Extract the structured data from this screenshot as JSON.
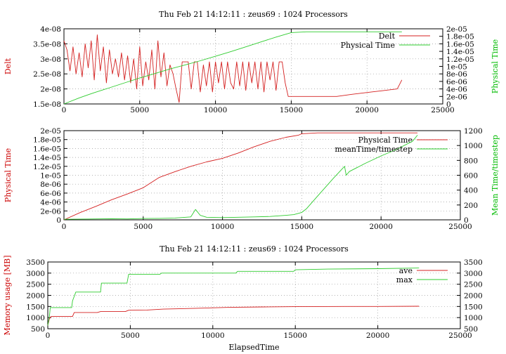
{
  "colors": {
    "red": "#d42020",
    "green": "#2ecc2e",
    "grid": "#9a9a9a",
    "axis": "#000000"
  },
  "chart_data": [
    {
      "type": "line",
      "title": "Thu Feb 21 14:12:11 : zeus69 : 1024 Processors",
      "xlabel": "",
      "ylabel": "Delt",
      "y2label": "Physical Time",
      "grid": true,
      "legend": "top-right",
      "xlim": [
        0,
        25000
      ],
      "ylim": [
        1.5e-08,
        4e-08
      ],
      "y2lim": [
        0,
        2e-05
      ],
      "xticks": [
        "0",
        "5000",
        "10000",
        "15000",
        "20000",
        "25000"
      ],
      "yticks": [
        "1.5e-08",
        "2e-08",
        "2.5e-08",
        "3e-08",
        "3.5e-08",
        "4e-08"
      ],
      "y2ticks": [
        "0",
        "2e-06",
        "4e-06",
        "6e-06",
        "8e-06",
        "1e-05",
        "1.2e-05",
        "1.4e-05",
        "1.6e-05",
        "1.8e-05",
        "2e-05"
      ],
      "series": [
        {
          "name": "Delt",
          "color": "red",
          "axis": "y",
          "x": [
            0,
            200,
            400,
            600,
            800,
            1000,
            1200,
            1400,
            1600,
            1800,
            2000,
            2200,
            2400,
            2600,
            2800,
            3000,
            3200,
            3400,
            3600,
            3800,
            4000,
            4200,
            4400,
            4600,
            4800,
            5000,
            5200,
            5400,
            5600,
            5800,
            6000,
            6200,
            6400,
            6600,
            6800,
            7000,
            7200,
            7400,
            7600,
            7800,
            8000,
            8200,
            8400,
            8600,
            8800,
            9000,
            9200,
            9400,
            9600,
            9800,
            10000,
            10200,
            10400,
            10600,
            10800,
            11000,
            11200,
            11400,
            11600,
            11800,
            12000,
            12200,
            12400,
            12600,
            12800,
            13000,
            13200,
            13400,
            13600,
            13800,
            14000,
            14200,
            14400,
            14600,
            14800,
            15000,
            16000,
            17000,
            18000,
            19000,
            20000,
            21000,
            22000,
            22300
          ],
          "y": [
            3.6e-08,
            3.3e-08,
            2.6e-08,
            3.4e-08,
            2.5e-08,
            3.2e-08,
            2.4e-08,
            3.5e-08,
            2.7e-08,
            3.6e-08,
            2.3e-08,
            3.8e-08,
            2.6e-08,
            3.4e-08,
            2.2e-08,
            3.3e-08,
            2.5e-08,
            3e-08,
            2.4e-08,
            3.2e-08,
            2.3e-08,
            3.1e-08,
            2.2e-08,
            3e-08,
            2e-08,
            3.4e-08,
            2.1e-08,
            2.9e-08,
            2.3e-08,
            3.3e-08,
            2e-08,
            3.6e-08,
            2.4e-08,
            3.2e-08,
            2.1e-08,
            2.8e-08,
            2.5e-08,
            2e-08,
            1.55e-08,
            2.9e-08,
            2.9e-08,
            2.9e-08,
            2e-08,
            2.9e-08,
            2.9e-08,
            1.9e-08,
            2.8e-08,
            2.1e-08,
            2.9e-08,
            1.9e-08,
            2.9e-08,
            2.2e-08,
            2.9e-08,
            2e-08,
            2.9e-08,
            2.2e-08,
            2e-08,
            2.9e-08,
            2.1e-08,
            2.9e-08,
            1.95e-08,
            2.9e-08,
            2.2e-08,
            2.9e-08,
            2e-08,
            2.9e-08,
            1.9e-08,
            2.9e-08,
            2.3e-08,
            2.9e-08,
            1.95e-08,
            2.9e-08,
            2.9e-08,
            2.2e-08,
            1.75e-08,
            1.75e-08,
            1.75e-08,
            1.75e-08,
            1.75e-08,
            1.82e-08,
            1.88e-08,
            1.94e-08,
            2e-08,
            2.3e-08
          ]
        },
        {
          "name": "Physical Time",
          "color": "green",
          "axis": "y2",
          "x": [
            0,
            1000,
            2000,
            3000,
            4000,
            5000,
            6000,
            7000,
            8000,
            9000,
            10000,
            11000,
            12000,
            13000,
            14000,
            15000,
            16000,
            17000,
            18000,
            19000,
            20000,
            21000,
            22000,
            22300
          ],
          "y": [
            0,
            1.6e-06,
            3e-06,
            4.3e-06,
            5.6e-06,
            6.9e-06,
            8.1e-06,
            9.3e-06,
            1.04e-05,
            1.15e-05,
            1.27e-05,
            1.39e-05,
            1.52e-05,
            1.65e-05,
            1.78e-05,
            1.9e-05,
            1.92e-05,
            1.92e-05,
            1.92e-05,
            1.92e-05,
            1.92e-05,
            1.92e-05,
            1.92e-05,
            1.92e-05
          ]
        }
      ]
    },
    {
      "type": "line",
      "title": "",
      "xlabel": "",
      "ylabel": "Physical Time",
      "y2label": "Mean Time/timestep",
      "grid": true,
      "legend": "top-right",
      "xlim": [
        0,
        25000
      ],
      "ylim": [
        0,
        2e-05
      ],
      "y2lim": [
        0,
        1200
      ],
      "xticks": [
        "0",
        "5000",
        "10000",
        "15000",
        "20000",
        "25000"
      ],
      "yticks": [
        "0",
        "2e-06",
        "4e-06",
        "6e-06",
        "8e-06",
        "1e-05",
        "1.2e-05",
        "1.4e-05",
        "1.6e-05",
        "1.8e-05",
        "2e-05"
      ],
      "y2ticks": [
        "0",
        "200",
        "400",
        "600",
        "800",
        "1000",
        "1200"
      ],
      "series": [
        {
          "name": "Physical Time",
          "color": "red",
          "axis": "y",
          "x": [
            0,
            1000,
            2000,
            3000,
            4000,
            5000,
            6000,
            7000,
            8000,
            9000,
            10000,
            11000,
            12000,
            13000,
            14000,
            14800,
            15000,
            16000,
            18000,
            20000,
            22000,
            22300
          ],
          "y": [
            0,
            1.6e-06,
            3e-06,
            4.5e-06,
            5.8e-06,
            7.2e-06,
            9.5e-06,
            1.08e-05,
            1.2e-05,
            1.3e-05,
            1.38e-05,
            1.5e-05,
            1.64e-05,
            1.76e-05,
            1.85e-05,
            1.9e-05,
            1.93e-05,
            1.95e-05,
            1.95e-05,
            1.95e-05,
            1.95e-05,
            1.95e-05
          ]
        },
        {
          "name": "meanTime/timestep",
          "color": "green",
          "axis": "y2",
          "x": [
            0,
            1000,
            2000,
            3000,
            4000,
            5000,
            6000,
            7000,
            8000,
            8300,
            8600,
            9000,
            10000,
            11000,
            12000,
            13000,
            14000,
            14500,
            15000,
            15300,
            16000,
            17000,
            17700,
            17800,
            18000,
            19000,
            20000,
            21000,
            22000,
            22300
          ],
          "y": [
            8,
            10,
            12,
            15,
            12,
            18,
            20,
            25,
            40,
            140,
            60,
            35,
            30,
            35,
            40,
            45,
            60,
            70,
            100,
            150,
            320,
            560,
            720,
            600,
            650,
            760,
            860,
            950,
            1060,
            1140
          ]
        }
      ]
    },
    {
      "type": "line",
      "title": "Thu Feb 21 14:12:11 : zeus69 : 1024 Processors",
      "xlabel": "ElapsedTime",
      "ylabel": "Memory usage [MB]",
      "y2label": "",
      "grid": true,
      "legend": "top-right",
      "xlim": [
        0,
        25000
      ],
      "ylim": [
        500,
        3500
      ],
      "y2lim": [
        500,
        3500
      ],
      "xticks": [
        "0",
        "5000",
        "10000",
        "15000",
        "20000",
        "25000"
      ],
      "yticks": [
        "500",
        "1000",
        "1500",
        "2000",
        "2500",
        "3000",
        "3500"
      ],
      "y2ticks": [
        "500",
        "1000",
        "1500",
        "2000",
        "2500",
        "3000",
        "3500"
      ],
      "series": [
        {
          "name": "ave",
          "color": "red",
          "axis": "y",
          "x": [
            0,
            100,
            200,
            1500,
            1600,
            3000,
            3200,
            4700,
            4900,
            6000,
            7000,
            9000,
            11000,
            13000,
            15000,
            18000,
            20000,
            22500
          ],
          "y": [
            650,
            950,
            1050,
            1050,
            1230,
            1230,
            1270,
            1270,
            1330,
            1340,
            1380,
            1420,
            1460,
            1480,
            1490,
            1500,
            1500,
            1510
          ]
        },
        {
          "name": "max",
          "color": "green",
          "axis": "y2",
          "x": [
            0,
            100,
            150,
            1450,
            1500,
            1700,
            3200,
            3250,
            4800,
            4900,
            6800,
            6900,
            11400,
            11500,
            14900,
            15000,
            17000,
            20000,
            22500
          ],
          "y": [
            650,
            1050,
            1450,
            1450,
            1750,
            2150,
            2150,
            2550,
            2550,
            2950,
            2950,
            3000,
            3000,
            3080,
            3080,
            3150,
            3180,
            3200,
            3230
          ]
        }
      ]
    }
  ]
}
